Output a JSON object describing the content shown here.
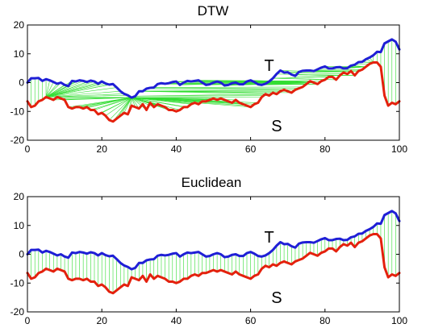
{
  "chart_data": [
    {
      "type": "line",
      "title": "DTW",
      "xlim": [
        0,
        100
      ],
      "ylim": [
        -20,
        20
      ],
      "xticks": [
        0,
        20,
        40,
        60,
        80,
        100
      ],
      "yticks": [
        -20,
        -10,
        0,
        10,
        20
      ],
      "xlabel": "",
      "ylabel": "",
      "grid": false,
      "annotations": [
        {
          "text": "T",
          "x": 65,
          "y": 6
        },
        {
          "text": "S",
          "x": 67,
          "y": -15
        }
      ],
      "alignment": "dtw",
      "series": [
        {
          "key": "T",
          "color": "#1f1fd6",
          "x": [
            0,
            1,
            2,
            3,
            4,
            5,
            6,
            7,
            8,
            9,
            10,
            11,
            12,
            13,
            14,
            15,
            16,
            17,
            18,
            19,
            20,
            21,
            22,
            23,
            24,
            25,
            26,
            27,
            28,
            29,
            30,
            31,
            32,
            33,
            34,
            35,
            36,
            37,
            38,
            39,
            40,
            41,
            42,
            43,
            44,
            45,
            46,
            47,
            48,
            49,
            50,
            51,
            52,
            53,
            54,
            55,
            56,
            57,
            58,
            59,
            60,
            61,
            62,
            63,
            64,
            65,
            66,
            67,
            68,
            69,
            70,
            71,
            72,
            73,
            74,
            75,
            76,
            77,
            78,
            79,
            80,
            81,
            82,
            83,
            84,
            85,
            86,
            87,
            88,
            89,
            90,
            91,
            92,
            93,
            94,
            95,
            96,
            97,
            98,
            99,
            100
          ],
          "values": [
            0,
            1.5,
            1.5,
            1.6,
            0.6,
            1.2,
            0.8,
            0.2,
            -0.4,
            0,
            -0.8,
            -1.2,
            0.6,
            0.4,
            0.8,
            0.6,
            0.2,
            0.7,
            0.4,
            -0.4,
            0.4,
            -0.3,
            -0.7,
            -0.5,
            -1.7,
            -3.0,
            -3.9,
            -4.4,
            -5.2,
            -4.7,
            -3.0,
            -3.0,
            -2.1,
            -1.8,
            -1.7,
            -0.5,
            -0.2,
            -0.4,
            -0.2,
            0.2,
            0.4,
            -0.8,
            0.0,
            0.6,
            0.4,
            0.6,
            0.8,
            0.0,
            -0.8,
            -0.6,
            0.0,
            0.4,
            0.0,
            -1.0,
            -0.8,
            -0.2,
            0.0,
            -0.6,
            -0.6,
            0.4,
            0.8,
            0.2,
            -0.6,
            -0.8,
            -0.4,
            0.4,
            1.5,
            3.0,
            4.2,
            3.5,
            3.6,
            2.8,
            2.3,
            3.7,
            4.1,
            4.2,
            4.2,
            4.0,
            4.6,
            5.2,
            5.6,
            4.9,
            4.9,
            5.3,
            5.4,
            4.9,
            5.0,
            5.9,
            6.2,
            7.1,
            7.2,
            8.1,
            8.7,
            9.5,
            10.7,
            10.6,
            13.6,
            14.3,
            15.0,
            14.2,
            11.5
          ]
        },
        {
          "key": "S",
          "color": "#e4210d",
          "x": [
            0,
            1,
            2,
            3,
            4,
            5,
            6,
            7,
            8,
            9,
            10,
            11,
            12,
            13,
            14,
            15,
            16,
            17,
            18,
            19,
            20,
            21,
            22,
            23,
            24,
            25,
            26,
            27,
            28,
            29,
            30,
            31,
            32,
            33,
            34,
            35,
            36,
            37,
            38,
            39,
            40,
            41,
            42,
            43,
            44,
            45,
            46,
            47,
            48,
            49,
            50,
            51,
            52,
            53,
            54,
            55,
            56,
            57,
            58,
            59,
            60,
            61,
            62,
            63,
            64,
            65,
            66,
            67,
            68,
            69,
            70,
            71,
            72,
            73,
            74,
            75,
            76,
            77,
            78,
            79,
            80,
            81,
            82,
            83,
            84,
            85,
            86,
            87,
            88,
            89,
            90,
            91,
            92,
            93,
            94,
            95,
            96,
            97,
            98,
            99,
            100
          ],
          "values": [
            -6.5,
            -8.5,
            -8.0,
            -6.5,
            -6.0,
            -5.0,
            -5.5,
            -6.0,
            -5.0,
            -5.5,
            -6.0,
            -8.5,
            -9.0,
            -8.5,
            -8.5,
            -9.0,
            -8.5,
            -9.5,
            -9.5,
            -11.0,
            -10.5,
            -11.5,
            -13.0,
            -13.5,
            -12.5,
            -11.5,
            -10.5,
            -11.0,
            -8.0,
            -8.5,
            -9.0,
            -7.5,
            -9.5,
            -7.0,
            -8.5,
            -7.5,
            -8.0,
            -8.5,
            -9.5,
            -9.5,
            -10.0,
            -9.5,
            -8.5,
            -8.5,
            -7.5,
            -7.0,
            -7.5,
            -6.5,
            -6.5,
            -6.0,
            -5.5,
            -6.0,
            -5.5,
            -6.0,
            -6.5,
            -7.0,
            -6.0,
            -7.0,
            -7.5,
            -8.0,
            -8.5,
            -7.5,
            -7.0,
            -5.0,
            -4.0,
            -4.5,
            -3.5,
            -4.0,
            -3.0,
            -2.5,
            -3.0,
            -3.5,
            -2.5,
            -2.0,
            -1.5,
            -0.5,
            0.5,
            0.0,
            -0.5,
            0.5,
            1.0,
            2.0,
            2.0,
            1.0,
            2.5,
            3.5,
            3.0,
            4.0,
            2.5,
            4.0,
            4.5,
            5.5,
            6.5,
            7.0,
            7.0,
            5.5,
            -4.5,
            -8.0,
            -7.0,
            -7.5,
            -6.5
          ]
        }
      ]
    },
    {
      "type": "line",
      "title": "Euclidean",
      "xlim": [
        0,
        100
      ],
      "ylim": [
        -20,
        20
      ],
      "xticks": [
        0,
        20,
        40,
        60,
        80,
        100
      ],
      "yticks": [
        -20,
        -10,
        0,
        10,
        20
      ],
      "xlabel": "",
      "ylabel": "",
      "grid": false,
      "annotations": [
        {
          "text": "T",
          "x": 65,
          "y": 6
        },
        {
          "text": "S",
          "x": 67,
          "y": -15
        }
      ],
      "alignment": "euclidean",
      "series": [
        {
          "key": "T",
          "color": "#1f1fd6",
          "x": [
            0,
            1,
            2,
            3,
            4,
            5,
            6,
            7,
            8,
            9,
            10,
            11,
            12,
            13,
            14,
            15,
            16,
            17,
            18,
            19,
            20,
            21,
            22,
            23,
            24,
            25,
            26,
            27,
            28,
            29,
            30,
            31,
            32,
            33,
            34,
            35,
            36,
            37,
            38,
            39,
            40,
            41,
            42,
            43,
            44,
            45,
            46,
            47,
            48,
            49,
            50,
            51,
            52,
            53,
            54,
            55,
            56,
            57,
            58,
            59,
            60,
            61,
            62,
            63,
            64,
            65,
            66,
            67,
            68,
            69,
            70,
            71,
            72,
            73,
            74,
            75,
            76,
            77,
            78,
            79,
            80,
            81,
            82,
            83,
            84,
            85,
            86,
            87,
            88,
            89,
            90,
            91,
            92,
            93,
            94,
            95,
            96,
            97,
            98,
            99,
            100
          ],
          "values": [
            0,
            1.5,
            1.5,
            1.6,
            0.6,
            1.2,
            0.8,
            0.2,
            -0.4,
            0,
            -0.8,
            -1.2,
            0.6,
            0.4,
            0.8,
            0.6,
            0.2,
            0.7,
            0.4,
            -0.4,
            0.4,
            -0.3,
            -0.7,
            -0.5,
            -1.7,
            -3.0,
            -3.9,
            -4.4,
            -5.2,
            -4.7,
            -3.0,
            -3.0,
            -2.1,
            -1.8,
            -1.7,
            -0.5,
            -0.2,
            -0.4,
            -0.2,
            0.2,
            0.4,
            -0.8,
            0.0,
            0.6,
            0.4,
            0.6,
            0.8,
            0.0,
            -0.8,
            -0.6,
            0.0,
            0.4,
            0.0,
            -1.0,
            -0.8,
            -0.2,
            0.0,
            -0.6,
            -0.6,
            0.4,
            0.8,
            0.2,
            -0.6,
            -0.8,
            -0.4,
            0.4,
            1.5,
            3.0,
            4.2,
            3.5,
            3.6,
            2.8,
            2.3,
            3.7,
            4.1,
            4.2,
            4.2,
            4.0,
            4.6,
            5.2,
            5.6,
            4.9,
            4.9,
            5.3,
            5.4,
            4.9,
            5.0,
            5.9,
            6.2,
            7.1,
            7.2,
            8.1,
            8.7,
            9.5,
            10.7,
            10.6,
            13.6,
            14.3,
            15.0,
            14.2,
            11.5
          ]
        },
        {
          "key": "S",
          "color": "#e4210d",
          "x": [
            0,
            1,
            2,
            3,
            4,
            5,
            6,
            7,
            8,
            9,
            10,
            11,
            12,
            13,
            14,
            15,
            16,
            17,
            18,
            19,
            20,
            21,
            22,
            23,
            24,
            25,
            26,
            27,
            28,
            29,
            30,
            31,
            32,
            33,
            34,
            35,
            36,
            37,
            38,
            39,
            40,
            41,
            42,
            43,
            44,
            45,
            46,
            47,
            48,
            49,
            50,
            51,
            52,
            53,
            54,
            55,
            56,
            57,
            58,
            59,
            60,
            61,
            62,
            63,
            64,
            65,
            66,
            67,
            68,
            69,
            70,
            71,
            72,
            73,
            74,
            75,
            76,
            77,
            78,
            79,
            80,
            81,
            82,
            83,
            84,
            85,
            86,
            87,
            88,
            89,
            90,
            91,
            92,
            93,
            94,
            95,
            96,
            97,
            98,
            99,
            100
          ],
          "values": [
            -6.5,
            -8.5,
            -8.0,
            -6.5,
            -6.0,
            -5.0,
            -5.5,
            -6.0,
            -5.0,
            -5.5,
            -6.0,
            -8.5,
            -9.0,
            -8.5,
            -8.5,
            -9.0,
            -8.5,
            -9.5,
            -9.5,
            -11.0,
            -10.5,
            -11.5,
            -13.0,
            -13.5,
            -12.5,
            -11.5,
            -10.5,
            -11.0,
            -8.0,
            -8.5,
            -9.0,
            -7.5,
            -9.5,
            -7.0,
            -8.5,
            -7.5,
            -8.0,
            -8.5,
            -9.5,
            -9.5,
            -10.0,
            -9.5,
            -8.5,
            -8.5,
            -7.5,
            -7.0,
            -7.5,
            -6.5,
            -6.5,
            -6.0,
            -5.5,
            -6.0,
            -5.5,
            -6.0,
            -6.5,
            -7.0,
            -6.0,
            -7.0,
            -7.5,
            -8.0,
            -8.5,
            -7.5,
            -7.0,
            -5.0,
            -4.0,
            -4.5,
            -3.5,
            -4.0,
            -3.0,
            -2.5,
            -3.0,
            -3.5,
            -2.5,
            -2.0,
            -1.5,
            -0.5,
            0.5,
            0.0,
            -0.5,
            0.5,
            1.0,
            2.0,
            2.0,
            1.0,
            2.5,
            3.5,
            3.0,
            4.0,
            2.5,
            4.0,
            4.5,
            5.5,
            6.5,
            7.0,
            7.0,
            5.5,
            -4.5,
            -8.0,
            -7.0,
            -7.5,
            -6.5
          ]
        }
      ]
    }
  ],
  "colors": {
    "t_series": "#1f1fd6",
    "s_series": "#e4210d",
    "alignment": "#33dd33"
  }
}
